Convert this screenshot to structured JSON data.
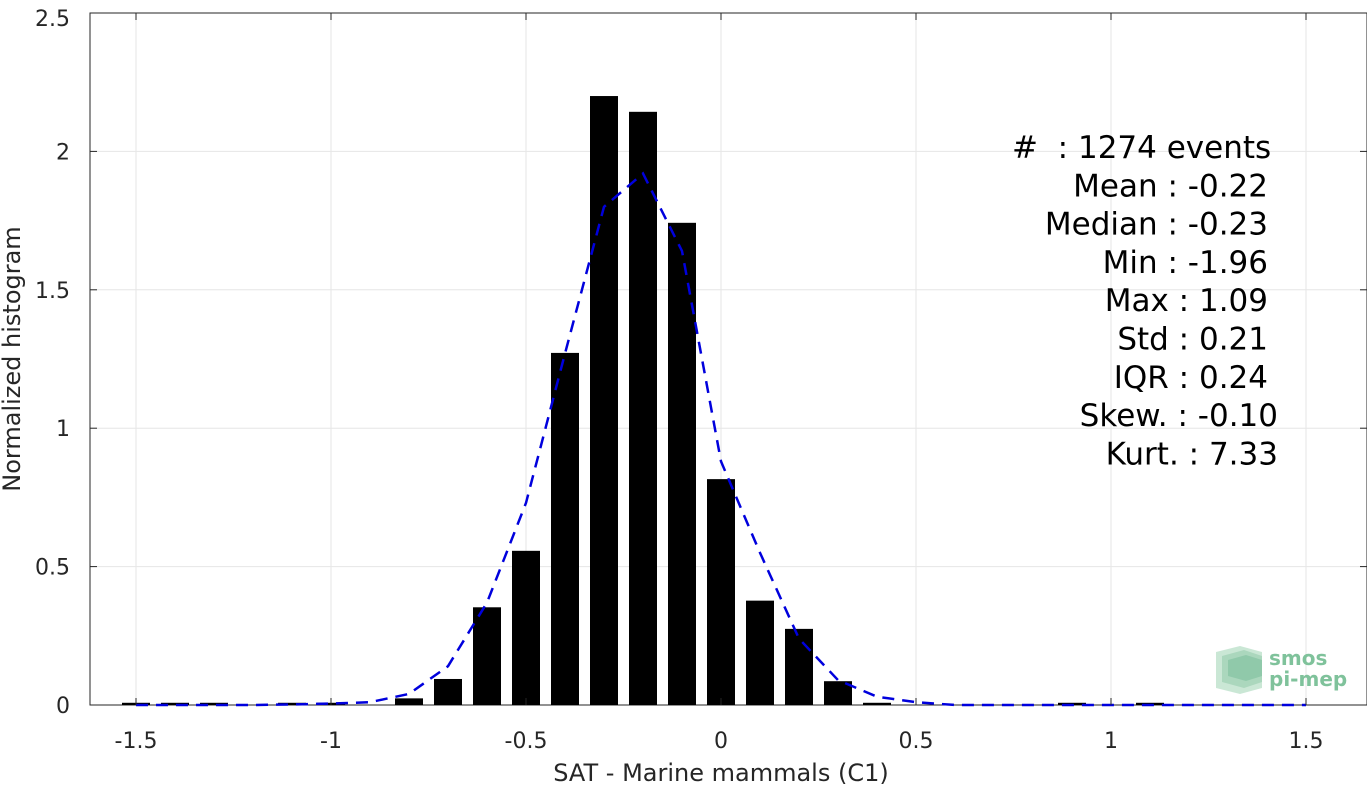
{
  "chart_data": {
    "type": "bar",
    "xlabel": "SAT - Marine mammals (C1)",
    "ylabel": "Normalized histogram",
    "xlim": [
      -1.6,
      1.6
    ],
    "ylim": [
      0,
      2.5
    ],
    "xticks": [
      "-1.5",
      "-1",
      "-0.5",
      "0",
      "0.5",
      "1",
      "1.5"
    ],
    "xtick_values": [
      -1.5,
      -1,
      -0.5,
      0,
      0.5,
      1,
      1.5
    ],
    "yticks": [
      "0",
      "0.5",
      "1",
      "1.5",
      "2",
      "2.5"
    ],
    "ytick_values": [
      0,
      0.5,
      1,
      1.5,
      2,
      2.5
    ],
    "grid": true,
    "bar_color": "#000000",
    "bins": {
      "centers": [
        -1.5,
        -1.4,
        -1.3,
        -1.1,
        -1.0,
        -0.8,
        -0.7,
        -0.6,
        -0.5,
        -0.4,
        -0.3,
        -0.2,
        -0.1,
        0.0,
        0.1,
        0.2,
        0.3,
        0.4,
        0.9,
        1.1
      ],
      "values": [
        0.008,
        0.008,
        0.008,
        0.008,
        0.008,
        0.024,
        0.094,
        0.353,
        0.557,
        1.272,
        2.2,
        2.143,
        1.742,
        0.816,
        0.377,
        0.275,
        0.086,
        0.008,
        0.008,
        0.008
      ]
    },
    "fit_curve": {
      "style": "dashed",
      "color": "#0000dd",
      "x": [
        -1.5,
        -1.4,
        -1.3,
        -1.2,
        -1.1,
        -1.0,
        -0.9,
        -0.8,
        -0.7,
        -0.6,
        -0.5,
        -0.4,
        -0.3,
        -0.2,
        -0.1,
        0.0,
        0.1,
        0.2,
        0.3,
        0.4,
        0.5,
        0.6,
        0.7,
        0.8,
        0.9,
        1.0,
        1.1,
        1.2,
        1.3,
        1.4,
        1.5
      ],
      "y": [
        0.0,
        0.0,
        0.0,
        0.0,
        0.002,
        0.005,
        0.01,
        0.04,
        0.14,
        0.37,
        0.73,
        1.27,
        1.8,
        1.92,
        1.64,
        0.88,
        0.55,
        0.24,
        0.09,
        0.03,
        0.01,
        0.0,
        0.0,
        0.0,
        0.0,
        0.0,
        0.0,
        0.0,
        0.0,
        0.0,
        0.0
      ]
    },
    "stats": [
      {
        "label": "#",
        "value": "  : 1274 events"
      },
      {
        "label": "Mean",
        "value": " : -0.22"
      },
      {
        "label": "Median",
        "value": " : -0.23"
      },
      {
        "label": "Min",
        "value": " : -1.96"
      },
      {
        "label": "Max",
        "value": " : 1.09"
      },
      {
        "label": "Std",
        "value": " : 0.21"
      },
      {
        "label": "IQR",
        "value": " : 0.24"
      },
      {
        "label": "Skew.",
        "value": " : -0.10"
      },
      {
        "label": "Kurt.",
        "value": " : 7.33"
      }
    ]
  },
  "logo": {
    "line1": "smos",
    "line2": "pi-mep",
    "color": "#7fc29b"
  }
}
